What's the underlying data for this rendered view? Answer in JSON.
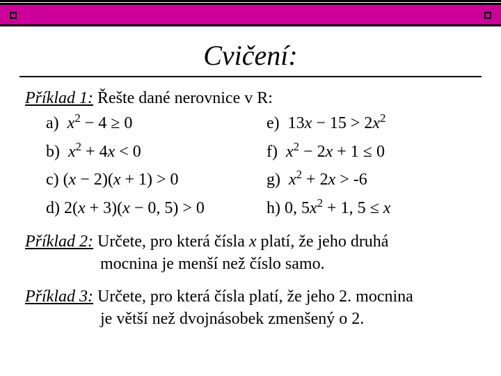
{
  "colors": {
    "accent_bar": "#cc0099",
    "border": "#000000",
    "text": "#000000",
    "background": "#ffffff"
  },
  "typography": {
    "title_fontsize": 40,
    "body_fontsize": 24,
    "font_family": "Times New Roman"
  },
  "title": "Cvičení:",
  "ex1": {
    "label": "Příklad 1:",
    "prompt": " Řešte dané nerovnice v R:",
    "items": {
      "a": "a)  x² − 4 ≥ 0",
      "e": "e)  13x − 15 > 2x²",
      "b": "b)  x² + 4x < 0",
      "f": "f)  x² − 2x + 1 ≤ 0",
      "c": "c) (x − 2)(x + 1) > 0",
      "g": "g)  x² + 2x > -6",
      "d": "d) 2(x + 3)(x − 0,5) > 0",
      "h": "h) 0,5x² + 1,5 ≤ x"
    }
  },
  "ex2": {
    "label": "Příklad 2:",
    "line1": " Určete, pro která čísla x platí, že jeho druhá",
    "line2": "mocnina je menší než číslo samo."
  },
  "ex3": {
    "label": "Příklad 3:",
    "line1": " Určete, pro která čísla platí, že jeho 2. mocnina",
    "line2": "je větší než dvojnásobek zmenšený o 2."
  }
}
